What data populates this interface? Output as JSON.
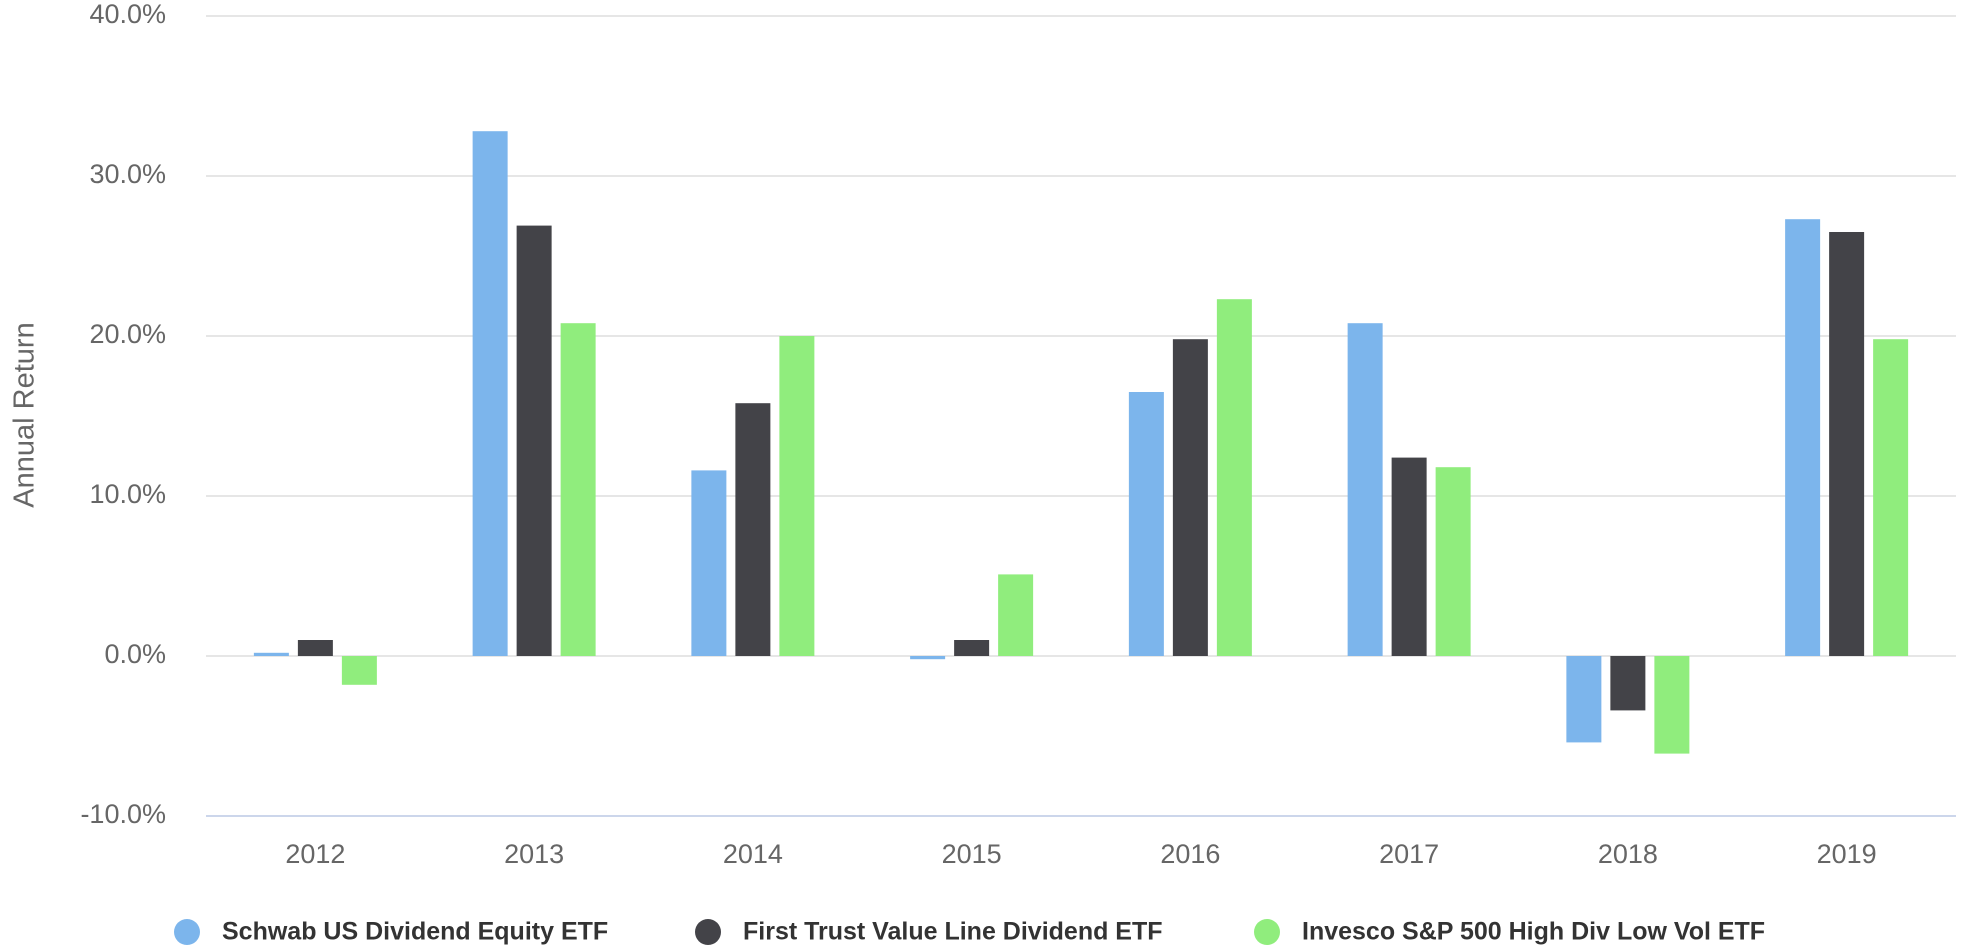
{
  "chart_data": {
    "type": "bar",
    "y_label": "Annual Return",
    "categories": [
      "2012",
      "2013",
      "2014",
      "2015",
      "2016",
      "2017",
      "2018",
      "2019"
    ],
    "series": [
      {
        "name": "Schwab US Dividend Equity ETF",
        "color": "#7cb5ec",
        "values": [
          0.2,
          32.8,
          11.6,
          -0.2,
          16.5,
          20.8,
          -5.4,
          27.3
        ]
      },
      {
        "name": "First Trust Value Line Dividend ETF",
        "color": "#434348",
        "values": [
          1.0,
          26.9,
          15.8,
          1.0,
          19.8,
          12.4,
          -3.4,
          26.5
        ]
      },
      {
        "name": "Invesco S&P 500 High Div Low Vol ETF",
        "color": "#90ed7d",
        "values": [
          -1.8,
          20.8,
          20.0,
          5.1,
          22.3,
          11.8,
          -6.1,
          19.8
        ]
      }
    ],
    "ylim": [
      -10,
      40
    ],
    "yticks": [
      {
        "value": -10,
        "label": "-10.0%"
      },
      {
        "value": 0,
        "label": "0.0%"
      },
      {
        "value": 10,
        "label": "10.0%"
      },
      {
        "value": 20,
        "label": "20.0%"
      },
      {
        "value": 30,
        "label": "30.0%"
      },
      {
        "value": 40,
        "label": "40.0%"
      }
    ],
    "grid": true,
    "legend": "bottom"
  }
}
